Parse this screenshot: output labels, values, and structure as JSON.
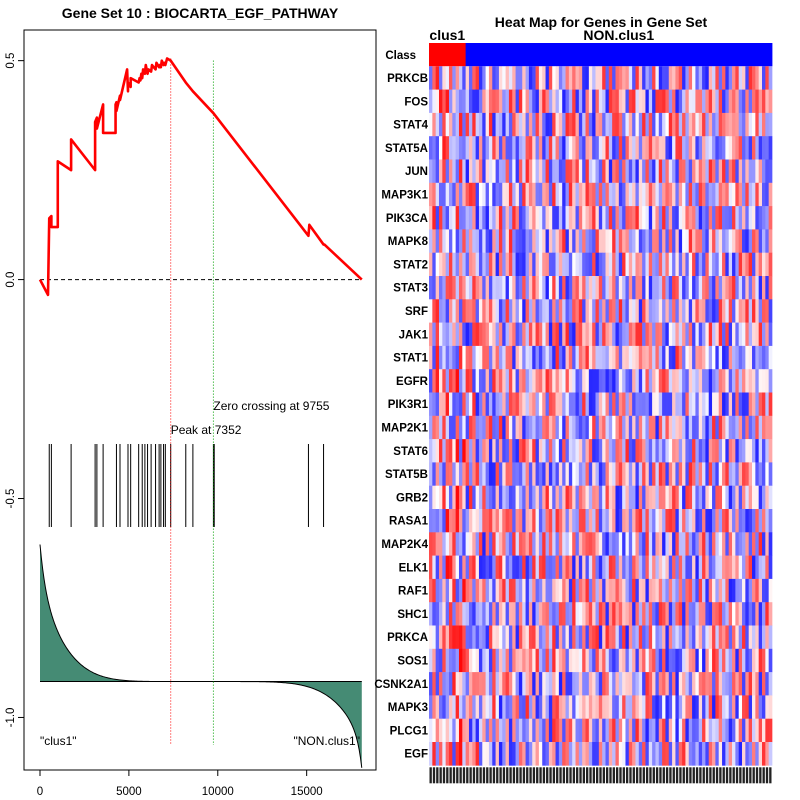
{
  "chart_data": [
    {
      "type": "line",
      "title": "Gene Set  10 : BIOCARTA_EGF_PATHWAY",
      "xlabel": "",
      "ylabel": "",
      "xlim": [
        -900,
        18900
      ],
      "ylim": [
        -1.12,
        0.57
      ],
      "x_ticks": [
        "0",
        "5000",
        "10000",
        "15000"
      ],
      "x_tick_values": [
        0,
        5000,
        10000,
        15000
      ],
      "y_ticks": [
        "-1.0",
        "-0.5",
        "0.0",
        "0.5"
      ],
      "y_tick_values": [
        -1.0,
        -0.5,
        0.0,
        0.5
      ],
      "n_genes": 18100,
      "hit_positions": [
        520,
        640,
        1750,
        3100,
        3200,
        3550,
        4300,
        4500,
        4950,
        5100,
        5550,
        5750,
        5900,
        6050,
        6250,
        6500,
        6700,
        6800,
        6950,
        7050,
        7352,
        8200,
        8600,
        9755,
        9800,
        15100,
        15950
      ],
      "running_es": {
        "x": [
          0,
          450,
          520,
          640,
          640,
          1000,
          1000,
          1750,
          1750,
          3100,
          3100,
          3200,
          3200,
          3550,
          3550,
          4250,
          4250,
          4300,
          4300,
          4500,
          4500,
          4900,
          4950,
          4950,
          5100,
          5100,
          5550,
          5600,
          5650,
          5700,
          5750,
          5800,
          5900,
          5950,
          6050,
          6100,
          6250,
          6300,
          6500,
          6550,
          6700,
          6750,
          6800,
          6850,
          6950,
          7000,
          7050,
          7150,
          7352,
          8200,
          8600,
          9755,
          15100,
          15150,
          15950,
          16000,
          18100
        ],
        "y": [
          0.0,
          -0.035,
          0.14,
          0.145,
          0.12,
          0.12,
          0.27,
          0.25,
          0.32,
          0.25,
          0.36,
          0.37,
          0.345,
          0.4,
          0.335,
          0.335,
          0.4,
          0.405,
          0.385,
          0.42,
          0.41,
          0.48,
          0.43,
          0.45,
          0.44,
          0.46,
          0.45,
          0.46,
          0.455,
          0.47,
          0.46,
          0.48,
          0.47,
          0.49,
          0.47,
          0.48,
          0.475,
          0.49,
          0.48,
          0.495,
          0.485,
          0.49,
          0.485,
          0.5,
          0.49,
          0.495,
          0.49,
          0.505,
          0.5,
          0.45,
          0.43,
          0.38,
          0.1,
          0.125,
          0.08,
          0.08,
          0.0
        ]
      },
      "ranked_metric_shape": {
        "top": -0.605,
        "baseline": -0.918,
        "bottom": -1.115
      },
      "peak_at": 7352,
      "zero_crossing": 9755,
      "annotations": {
        "peak": "Peak at 7352",
        "zero_crossing": "Zero crossing at 9755",
        "left_label": "\"clus1\"",
        "right_label": "\"NON.clus1\""
      },
      "colors": {
        "es_line": "#ff0000",
        "peak_line": "#ff0000",
        "zero_line": "#00a000",
        "fill": "#458b74",
        "hits": "#000000"
      }
    },
    {
      "type": "heatmap",
      "title": "Heat Map for Genes in Gene Set",
      "class_label": "Class",
      "classes": [
        {
          "name": "clus1",
          "color": "#ff0000",
          "n_samples": 11
        },
        {
          "name": "NON.clus1",
          "color": "#0000ff",
          "n_samples": 92
        }
      ],
      "genes": [
        "PRKCB",
        "FOS",
        "STAT4",
        "STAT5A",
        "JUN",
        "MAP3K1",
        "PIK3CA",
        "MAPK8",
        "STAT2",
        "STAT3",
        "SRF",
        "JAK1",
        "STAT1",
        "EGFR",
        "PIK3R1",
        "MAP2K1",
        "STAT6",
        "STAT5B",
        "GRB2",
        "RASA1",
        "MAP2K4",
        "ELK1",
        "RAF1",
        "SHC1",
        "PRKCA",
        "SOS1",
        "CSNK2A1",
        "MAPK3",
        "PLCG1",
        "EGF"
      ],
      "n_samples": 103,
      "color_scale": {
        "low": "#0000ff",
        "mid": "#ffffff",
        "high": "#ff0000"
      },
      "seed": 10
    }
  ]
}
